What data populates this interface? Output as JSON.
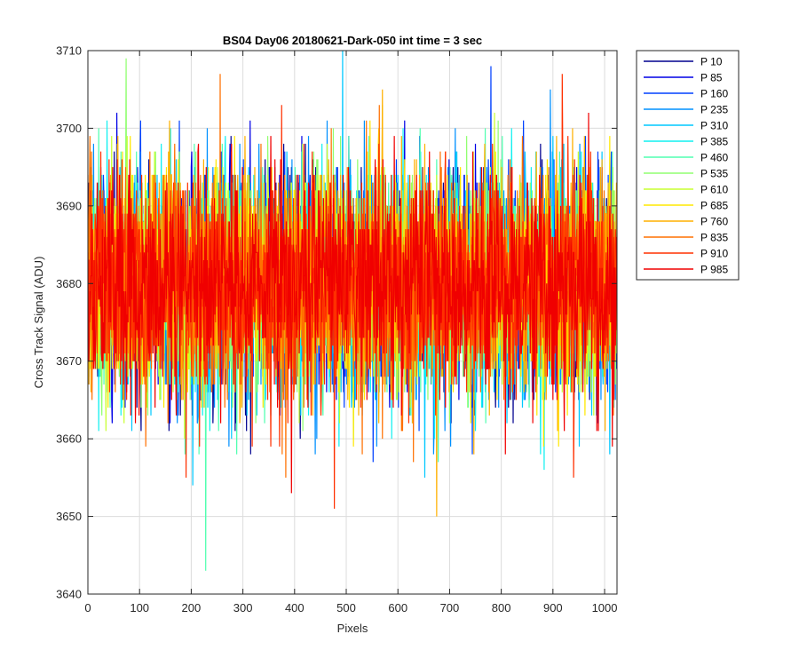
{
  "chart_data": {
    "type": "line",
    "title": "BS04 Day06 20180621-Dark-050 int time = 3 sec",
    "xlabel": "Pixels",
    "ylabel": "Cross Track Signal (ADU)",
    "xlim": [
      0,
      1024
    ],
    "ylim": [
      3640,
      3710
    ],
    "xticks": [
      0,
      100,
      200,
      300,
      400,
      500,
      600,
      700,
      800,
      900,
      1000
    ],
    "yticks": [
      3640,
      3650,
      3660,
      3670,
      3680,
      3690,
      3700,
      3710
    ],
    "grid": true,
    "legend_position": "outside-top-right",
    "noise_model": {
      "n_points_per_series": 1024,
      "mean": 3680,
      "std": 7
    },
    "series": [
      {
        "name": "P 10",
        "color": "#00008f"
      },
      {
        "name": "P 85",
        "color": "#0000e6"
      },
      {
        "name": "P 160",
        "color": "#0040ff"
      },
      {
        "name": "P 235",
        "color": "#0090ff"
      },
      {
        "name": "P 310",
        "color": "#00c8ff"
      },
      {
        "name": "P 385",
        "color": "#10f0f0"
      },
      {
        "name": "P 460",
        "color": "#50ffb0"
      },
      {
        "name": "P 535",
        "color": "#90ff70"
      },
      {
        "name": "P 610",
        "color": "#c8ff30"
      },
      {
        "name": "P 685",
        "color": "#ffe800"
      },
      {
        "name": "P 760",
        "color": "#ffb000"
      },
      {
        "name": "P 835",
        "color": "#ff7000"
      },
      {
        "name": "P 910",
        "color": "#ff3000"
      },
      {
        "name": "P 985",
        "color": "#f00000"
      }
    ],
    "notable_points": [
      {
        "series": "P 460",
        "x": 228,
        "y": 3643
      },
      {
        "series": "P 310",
        "x": 493,
        "y": 3710
      },
      {
        "series": "P 535",
        "x": 74,
        "y": 3709
      },
      {
        "series": "P 760",
        "x": 675,
        "y": 3650
      },
      {
        "series": "P 910",
        "x": 477,
        "y": 3651
      },
      {
        "series": "P 910",
        "x": 918,
        "y": 3707
      },
      {
        "series": "P 835",
        "x": 256,
        "y": 3707
      }
    ]
  }
}
